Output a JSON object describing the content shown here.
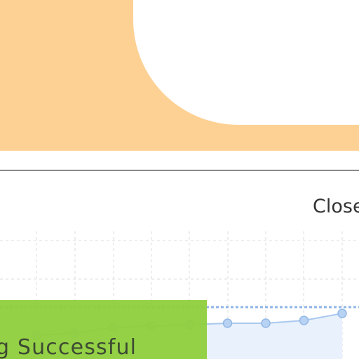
{
  "close_button": {
    "label": "Close"
  },
  "toast": {
    "message": "g Successful"
  },
  "chart": {
    "type": "line",
    "values": [
      11,
      12.5,
      16.5,
      17.5,
      18.5,
      19.5,
      19.5,
      21.5,
      26.5
    ],
    "target": 31,
    "ylim": [
      0,
      100
    ],
    "color": "#a9c8ee"
  }
}
